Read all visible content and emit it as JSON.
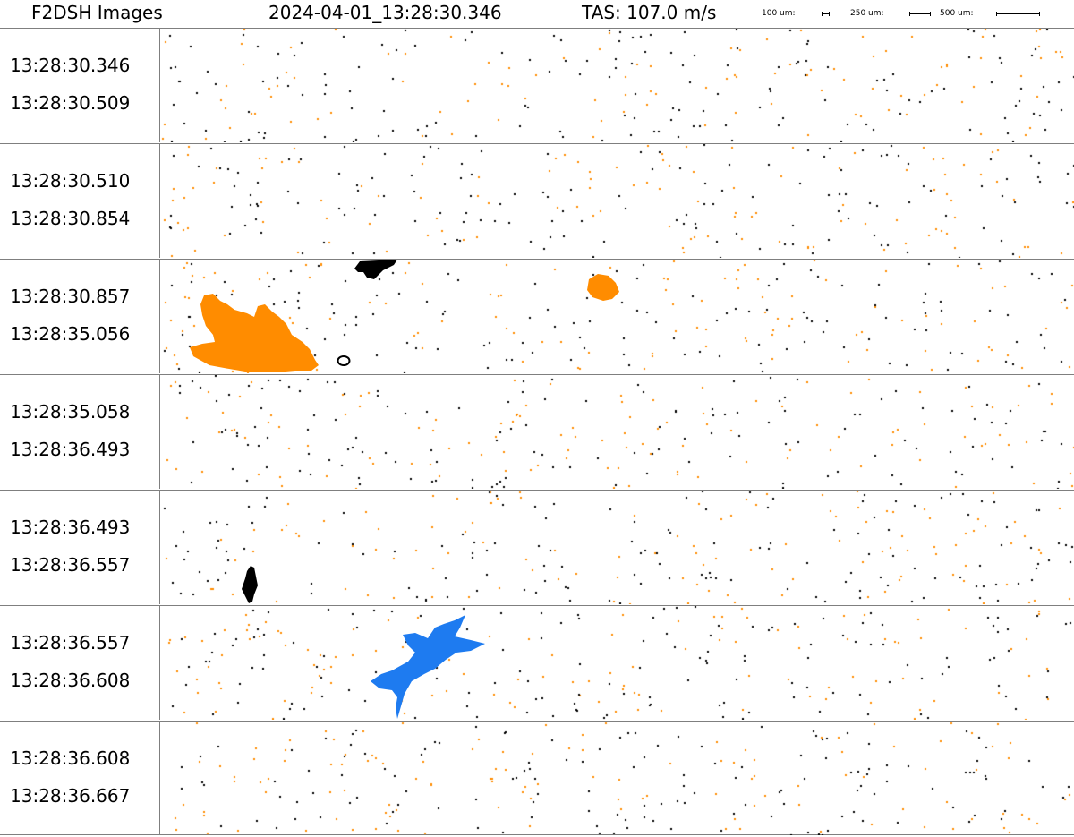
{
  "header": {
    "title": "F2DSH Images",
    "timestamp": "2024-04-01_13:28:30.346",
    "tas": "TAS: 107.0 m/s",
    "scale_bars": [
      {
        "label": "100 um:"
      },
      {
        "label": "250 um:"
      },
      {
        "label": "500 um:"
      }
    ]
  },
  "strips": [
    {
      "start": "13:28:30.346",
      "end": "13:28:30.509"
    },
    {
      "start": "13:28:30.510",
      "end": "13:28:30.854"
    },
    {
      "start": "13:28:30.857",
      "end": "13:28:35.056"
    },
    {
      "start": "13:28:35.058",
      "end": "13:28:36.493"
    },
    {
      "start": "13:28:36.493",
      "end": "13:28:36.557"
    },
    {
      "start": "13:28:36.557",
      "end": "13:28:36.608"
    },
    {
      "start": "13:28:36.608",
      "end": "13:28:36.667"
    }
  ],
  "colors": {
    "orange": "#ff8c00",
    "blue": "#1e7bf0",
    "black": "#000000",
    "divider": "#7f7f7f"
  }
}
